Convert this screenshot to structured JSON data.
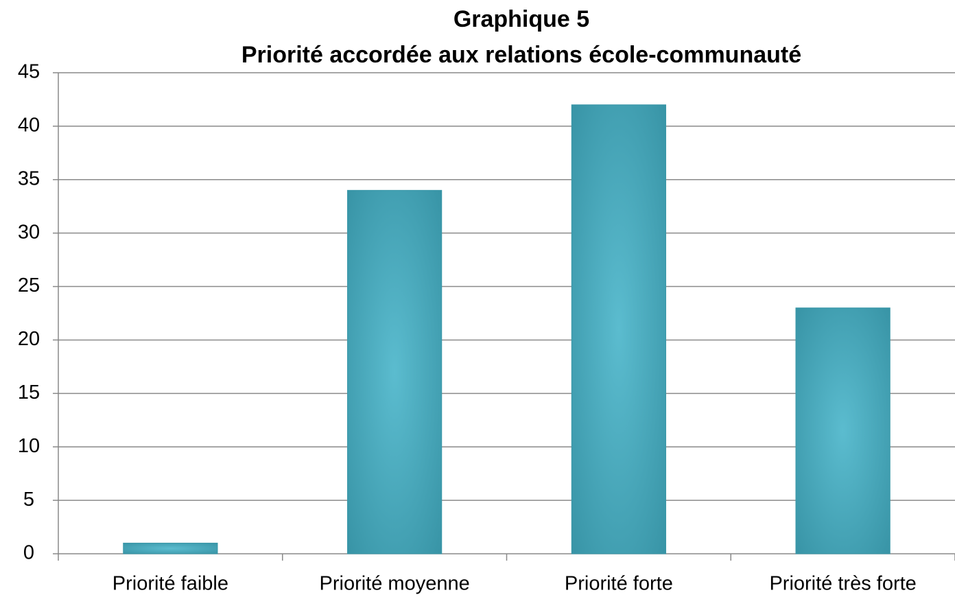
{
  "chart_data": {
    "type": "bar",
    "title": "Graphique 5",
    "subtitle": "Priorité accordée aux relations école-communauté",
    "categories": [
      "Priorité faible",
      "Priorité moyenne",
      "Priorité forte",
      "Priorité très forte"
    ],
    "values": [
      1,
      34,
      42,
      23
    ],
    "color": "#5bbccf",
    "ylim": [
      0,
      45
    ],
    "yticks": [
      0,
      5,
      10,
      15,
      20,
      25,
      30,
      35,
      40,
      45
    ],
    "grid": true
  }
}
